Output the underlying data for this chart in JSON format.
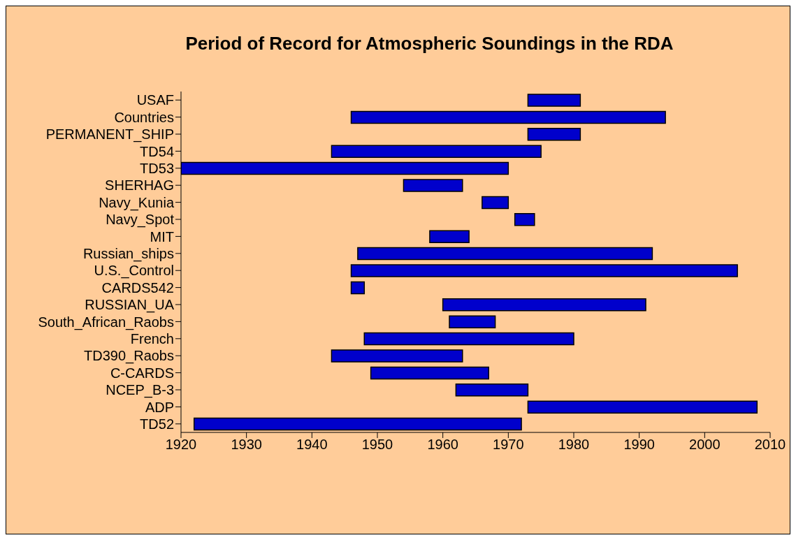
{
  "chart_data": {
    "type": "bar",
    "orientation": "horizontal",
    "title": "Period of Record for Atmospheric Soundings in the RDA",
    "categories": [
      "USAF",
      "Countries",
      "PERMANENT_SHIP",
      "TD54",
      "TD53",
      "SHERHAG",
      "Navy_Kunia",
      "Navy_Spot",
      "MIT",
      "Russian_ships",
      "U.S._Control",
      "CARDS542",
      "RUSSIAN_UA",
      "South_African_Raobs",
      "French",
      "TD390_Raobs",
      "C-CARDS",
      "NCEP_B-3",
      "ADP",
      "TD52"
    ],
    "base": [
      1973,
      1946,
      1973,
      1943,
      1920,
      1954,
      1966,
      1971,
      1958,
      1947,
      1946,
      1946,
      1960,
      1961,
      1948,
      1943,
      1949,
      1962,
      1973,
      1922
    ],
    "values": [
      8,
      48,
      8,
      32,
      50,
      9,
      4,
      3,
      6,
      45,
      59,
      2,
      31,
      7,
      32,
      20,
      18,
      11,
      35,
      50
    ],
    "color": "#0000cc",
    "xlim": [
      1920,
      2010
    ],
    "xticks": [
      1920,
      1930,
      1940,
      1950,
      1960,
      1970,
      1980,
      1990,
      2000,
      2010
    ],
    "grid": false,
    "legend": false
  }
}
